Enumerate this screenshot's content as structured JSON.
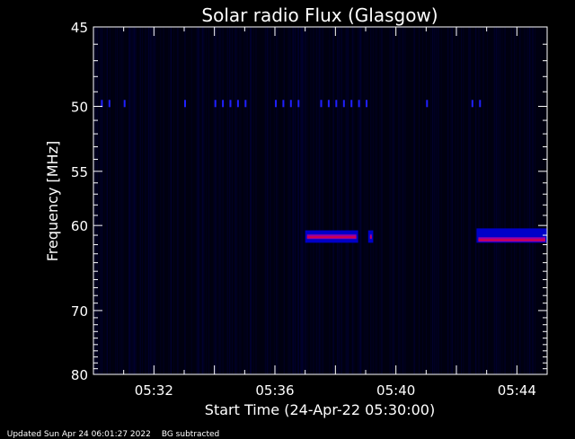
{
  "chart_data": {
    "type": "heatmap",
    "title": "Solar radio Flux (Glasgow)",
    "xlabel": "Start Time (24-Apr-22 05:30:00)",
    "ylabel": "Frequency [MHz]",
    "x_unit": "minutes",
    "xlim": [
      "05:30:00",
      "05:45:00"
    ],
    "ylim": [
      80,
      45
    ],
    "y_scale": "reciprocal",
    "x_ticks": [
      "05:32",
      "05:36",
      "05:40",
      "05:44"
    ],
    "y_ticks": [
      45,
      50,
      55,
      60,
      70,
      80
    ],
    "colormap": [
      "#000010",
      "#0000c8",
      "#2020ff",
      "#b000a0",
      "#ff0000"
    ],
    "events": [
      {
        "name": "band 61 MHz",
        "start": "05:37:00",
        "end": "05:38:45",
        "freq_low": 60.5,
        "freq_high": 61.8,
        "peak_freq": 61.2
      },
      {
        "name": "band 61 MHz",
        "start": "05:39:05",
        "end": "05:39:15",
        "freq_low": 60.5,
        "freq_high": 61.8,
        "peak_freq": 61.2
      },
      {
        "name": "band 61 MHz",
        "start": "05:42:40",
        "end": "05:45:00",
        "freq_low": 60.3,
        "freq_high": 61.8,
        "peak_freq": 61.5
      }
    ],
    "rfi_lines": [
      {
        "freq": 49.8,
        "times": [
          "05:30:15",
          "05:30:30",
          "05:31:00",
          "05:33:00",
          "05:34:00",
          "05:34:15",
          "05:34:30",
          "05:34:45",
          "05:35:00",
          "05:36:00",
          "05:36:15",
          "05:36:30",
          "05:36:45",
          "05:37:30",
          "05:37:45",
          "05:38:00",
          "05:38:15",
          "05:38:30",
          "05:38:45",
          "05:39:00",
          "05:41:00",
          "05:42:30",
          "05:42:45"
        ]
      }
    ]
  },
  "footer": {
    "updated": "Updated Sun Apr 24 06:01:27 2022",
    "note": "BG subtracted"
  }
}
